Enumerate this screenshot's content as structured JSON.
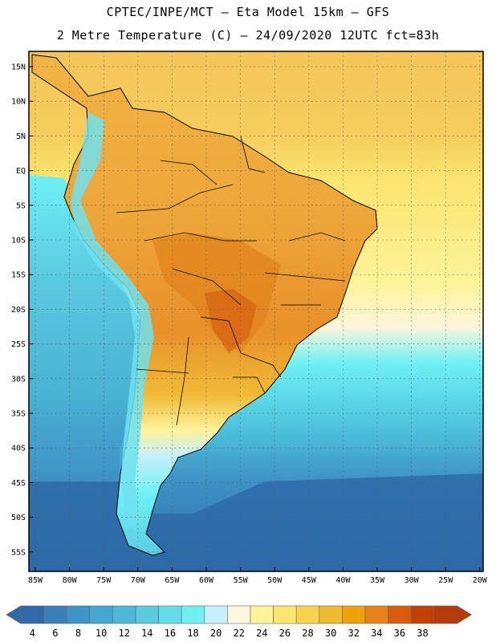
{
  "header": {
    "title_line1": "CPTEC/INPE/MCT –  Eta Model 15km – GFS",
    "title_line2": "2 Metre Temperature (C) – 24/09/2020 12UTC fct=83h"
  },
  "axes": {
    "lat_labels": [
      "15N",
      "10N",
      "5N",
      "EQ",
      "5S",
      "10S",
      "15S",
      "20S",
      "25S",
      "30S",
      "35S",
      "40S",
      "45S",
      "50S",
      "55S"
    ],
    "lon_labels": [
      "85W",
      "80W",
      "75W",
      "70W",
      "65W",
      "60W",
      "55W",
      "50W",
      "45W",
      "40W",
      "35W",
      "30W",
      "25W",
      "20W"
    ]
  },
  "colorbar": {
    "labels": [
      "4",
      "6",
      "8",
      "10",
      "12",
      "14",
      "16",
      "18",
      "20",
      "22",
      "24",
      "26",
      "28",
      "30",
      "32",
      "34",
      "36",
      "38"
    ],
    "colors": [
      "#2e6aa8",
      "#3a7fba",
      "#3f94c6",
      "#45a6cf",
      "#4eb8d8",
      "#5bcbe1",
      "#65dce9",
      "#6ef0f5",
      "#c8f0fb",
      "#fdf5dc",
      "#fdf39a",
      "#fbe570",
      "#f7d250",
      "#efbb36",
      "#f0a20c",
      "#e6831a",
      "#d85c0c",
      "#c24205",
      "#b83a0a"
    ],
    "low_arrow_color": "#2e6aa8",
    "high_arrow_color": "#b83a0a"
  },
  "map_colors": {
    "ocean_deep": "#2e6aa8",
    "ocean_mid": "#3f94c6",
    "ocean_cyan": "#5fd4e8",
    "ocean_light": "#6ef0f5",
    "ocean_pale": "#fdf5dc",
    "tropical_sea": "#fbe570",
    "tropical_sea_warm": "#f7d250",
    "land_hot": "#e6a040",
    "land_hotter": "#d87a1a",
    "andes": "#6ee0f0"
  }
}
